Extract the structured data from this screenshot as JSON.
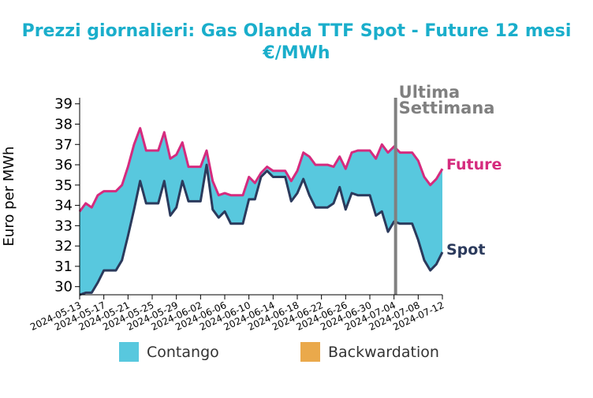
{
  "title_line1": "Prezzi giornalieri: Gas Olanda TTF Spot - Future 12 mesi",
  "title_line2": "€/MWh",
  "colors": {
    "title": "#1aaecb",
    "future": "#d52b7e",
    "spot": "#2b3a5c",
    "contango": "#58c8de",
    "backwardation": "#eaa94b",
    "marker": "#808080"
  },
  "legend": [
    {
      "label": "Contango",
      "color": "#58c8de"
    },
    {
      "label": "Backwardation",
      "color": "#eaa94b"
    }
  ],
  "chart_data": {
    "type": "area",
    "ylabel": "Euro per MWh",
    "ylim": [
      29.6,
      39.3
    ],
    "yticks": [
      30,
      31,
      32,
      33,
      34,
      35,
      36,
      37,
      38,
      39
    ],
    "xlim": [
      "2024-05-13",
      "2024-07-12"
    ],
    "xticks": [
      "2024-05-13",
      "2024-05-17",
      "2024-05-21",
      "2024-05-25",
      "2024-05-29",
      "2024-06-02",
      "2024-06-06",
      "2024-06-10",
      "2024-06-14",
      "2024-06-18",
      "2024-06-22",
      "2024-06-26",
      "2024-06-30",
      "2024-07-04",
      "2024-07-08",
      "2024-07-12"
    ],
    "marker": {
      "date": "2024-07-04",
      "label_line1": "Ultima",
      "label_line2": "Settimana"
    },
    "series": [
      {
        "name": "Future",
        "values": [
          [
            "2024-05-13",
            33.7
          ],
          [
            "2024-05-14",
            34.1
          ],
          [
            "2024-05-15",
            33.9
          ],
          [
            "2024-05-16",
            34.5
          ],
          [
            "2024-05-17",
            34.7
          ],
          [
            "2024-05-18",
            34.7
          ],
          [
            "2024-05-19",
            34.7
          ],
          [
            "2024-05-20",
            35.0
          ],
          [
            "2024-05-21",
            35.9
          ],
          [
            "2024-05-22",
            37.0
          ],
          [
            "2024-05-23",
            37.8
          ],
          [
            "2024-05-24",
            36.7
          ],
          [
            "2024-05-25",
            36.7
          ],
          [
            "2024-05-26",
            36.7
          ],
          [
            "2024-05-27",
            37.6
          ],
          [
            "2024-05-28",
            36.3
          ],
          [
            "2024-05-29",
            36.5
          ],
          [
            "2024-05-30",
            37.1
          ],
          [
            "2024-05-31",
            35.9
          ],
          [
            "2024-06-01",
            35.9
          ],
          [
            "2024-06-02",
            35.9
          ],
          [
            "2024-06-03",
            36.7
          ],
          [
            "2024-06-04",
            35.2
          ],
          [
            "2024-06-05",
            34.5
          ],
          [
            "2024-06-06",
            34.6
          ],
          [
            "2024-06-07",
            34.5
          ],
          [
            "2024-06-08",
            34.5
          ],
          [
            "2024-06-09",
            34.5
          ],
          [
            "2024-06-10",
            35.4
          ],
          [
            "2024-06-11",
            35.1
          ],
          [
            "2024-06-12",
            35.6
          ],
          [
            "2024-06-13",
            35.9
          ],
          [
            "2024-06-14",
            35.7
          ],
          [
            "2024-06-15",
            35.7
          ],
          [
            "2024-06-16",
            35.7
          ],
          [
            "2024-06-17",
            35.2
          ],
          [
            "2024-06-18",
            35.7
          ],
          [
            "2024-06-19",
            36.6
          ],
          [
            "2024-06-20",
            36.4
          ],
          [
            "2024-06-21",
            36.0
          ],
          [
            "2024-06-22",
            36.0
          ],
          [
            "2024-06-23",
            36.0
          ],
          [
            "2024-06-24",
            35.9
          ],
          [
            "2024-06-25",
            36.4
          ],
          [
            "2024-06-26",
            35.8
          ],
          [
            "2024-06-27",
            36.6
          ],
          [
            "2024-06-28",
            36.7
          ],
          [
            "2024-06-29",
            36.7
          ],
          [
            "2024-06-30",
            36.7
          ],
          [
            "2024-07-01",
            36.3
          ],
          [
            "2024-07-02",
            37.0
          ],
          [
            "2024-07-03",
            36.6
          ],
          [
            "2024-07-04",
            36.9
          ],
          [
            "2024-07-05",
            36.6
          ],
          [
            "2024-07-06",
            36.6
          ],
          [
            "2024-07-07",
            36.6
          ],
          [
            "2024-07-08",
            36.2
          ],
          [
            "2024-07-09",
            35.4
          ],
          [
            "2024-07-10",
            35.0
          ],
          [
            "2024-07-11",
            35.3
          ],
          [
            "2024-07-12",
            35.8
          ]
        ]
      },
      {
        "name": "Spot",
        "values": [
          [
            "2024-05-13",
            29.6
          ],
          [
            "2024-05-14",
            29.7
          ],
          [
            "2024-05-15",
            29.7
          ],
          [
            "2024-05-16",
            30.2
          ],
          [
            "2024-05-17",
            30.8
          ],
          [
            "2024-05-18",
            30.8
          ],
          [
            "2024-05-19",
            30.8
          ],
          [
            "2024-05-20",
            31.3
          ],
          [
            "2024-05-21",
            32.5
          ],
          [
            "2024-05-22",
            33.8
          ],
          [
            "2024-05-23",
            35.2
          ],
          [
            "2024-05-24",
            34.1
          ],
          [
            "2024-05-25",
            34.1
          ],
          [
            "2024-05-26",
            34.1
          ],
          [
            "2024-05-27",
            35.2
          ],
          [
            "2024-05-28",
            33.5
          ],
          [
            "2024-05-29",
            33.9
          ],
          [
            "2024-05-30",
            35.2
          ],
          [
            "2024-05-31",
            34.2
          ],
          [
            "2024-06-01",
            34.2
          ],
          [
            "2024-06-02",
            34.2
          ],
          [
            "2024-06-03",
            36.0
          ],
          [
            "2024-06-04",
            33.8
          ],
          [
            "2024-06-05",
            33.4
          ],
          [
            "2024-06-06",
            33.7
          ],
          [
            "2024-06-07",
            33.1
          ],
          [
            "2024-06-08",
            33.1
          ],
          [
            "2024-06-09",
            33.1
          ],
          [
            "2024-06-10",
            34.3
          ],
          [
            "2024-06-11",
            34.3
          ],
          [
            "2024-06-12",
            35.4
          ],
          [
            "2024-06-13",
            35.7
          ],
          [
            "2024-06-14",
            35.4
          ],
          [
            "2024-06-15",
            35.4
          ],
          [
            "2024-06-16",
            35.4
          ],
          [
            "2024-06-17",
            34.2
          ],
          [
            "2024-06-18",
            34.6
          ],
          [
            "2024-06-19",
            35.3
          ],
          [
            "2024-06-20",
            34.5
          ],
          [
            "2024-06-21",
            33.9
          ],
          [
            "2024-06-22",
            33.9
          ],
          [
            "2024-06-23",
            33.9
          ],
          [
            "2024-06-24",
            34.1
          ],
          [
            "2024-06-25",
            34.9
          ],
          [
            "2024-06-26",
            33.8
          ],
          [
            "2024-06-27",
            34.6
          ],
          [
            "2024-06-28",
            34.5
          ],
          [
            "2024-06-29",
            34.5
          ],
          [
            "2024-06-30",
            34.5
          ],
          [
            "2024-07-01",
            33.5
          ],
          [
            "2024-07-02",
            33.7
          ],
          [
            "2024-07-03",
            32.7
          ],
          [
            "2024-07-04",
            33.2
          ],
          [
            "2024-07-05",
            33.1
          ],
          [
            "2024-07-06",
            33.1
          ],
          [
            "2024-07-07",
            33.1
          ],
          [
            "2024-07-08",
            32.3
          ],
          [
            "2024-07-09",
            31.3
          ],
          [
            "2024-07-10",
            30.8
          ],
          [
            "2024-07-11",
            31.1
          ],
          [
            "2024-07-12",
            31.7
          ]
        ]
      }
    ]
  }
}
